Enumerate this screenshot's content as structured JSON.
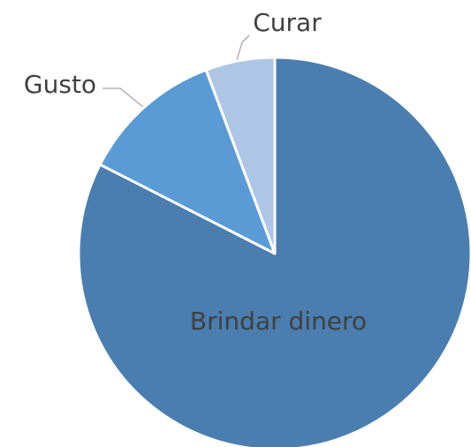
{
  "chart_data": {
    "type": "pie",
    "categories": [
      "Brindar dinero",
      "Gusto",
      "Curar"
    ],
    "values": [
      82.5,
      11.8,
      5.7
    ],
    "colors": [
      "#4a7eb0",
      "#5b9bd5",
      "#adc6e5"
    ]
  }
}
